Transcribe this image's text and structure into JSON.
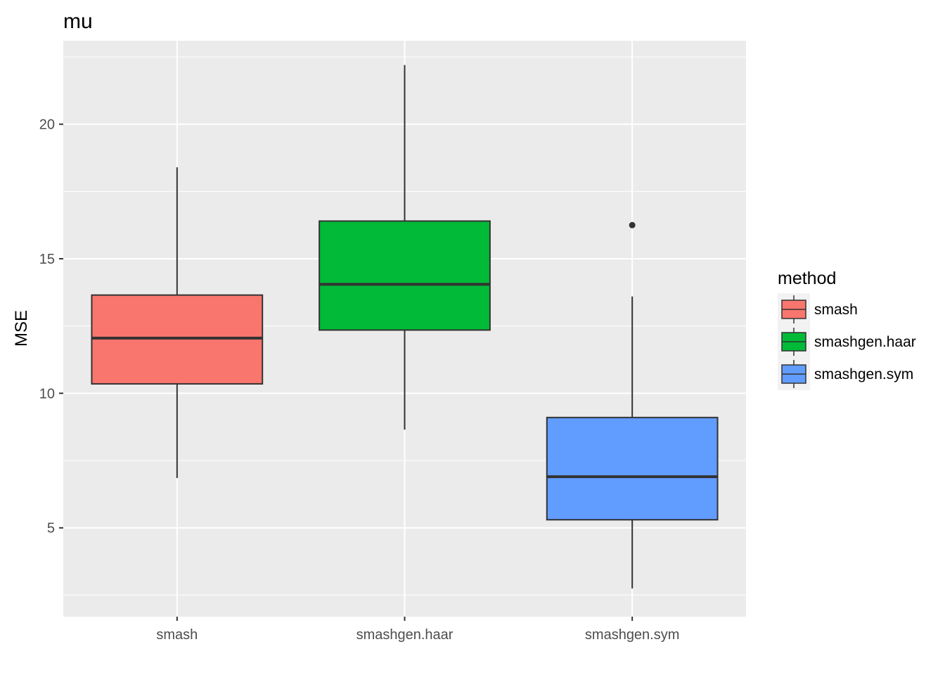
{
  "chart_data": {
    "type": "box",
    "title": "mu",
    "xlabel": "",
    "ylabel": "MSE",
    "ylim": [
      1.7,
      23.1
    ],
    "y_ticks": [
      5,
      10,
      15,
      20
    ],
    "y_tick_labels": [
      "5",
      "10",
      "15",
      "20"
    ],
    "grid": true,
    "legend": {
      "title": "method",
      "position": "right",
      "entries": [
        "smash",
        "smashgen.haar",
        "smashgen.sym"
      ]
    },
    "categories": [
      "smash",
      "smashgen.haar",
      "smashgen.sym"
    ],
    "colors": [
      "#F8766D",
      "#00BA38",
      "#619CFF"
    ],
    "series": [
      {
        "name": "smash",
        "min": 6.85,
        "q1": 10.35,
        "median": 12.05,
        "q3": 13.65,
        "max": 18.4,
        "outliers": []
      },
      {
        "name": "smashgen.haar",
        "min": 8.65,
        "q1": 12.35,
        "median": 14.05,
        "q3": 16.4,
        "max": 22.2,
        "outliers": []
      },
      {
        "name": "smashgen.sym",
        "min": 2.75,
        "q1": 5.3,
        "median": 6.9,
        "q3": 9.1,
        "max": 13.6,
        "outliers": [
          16.25
        ]
      }
    ]
  }
}
